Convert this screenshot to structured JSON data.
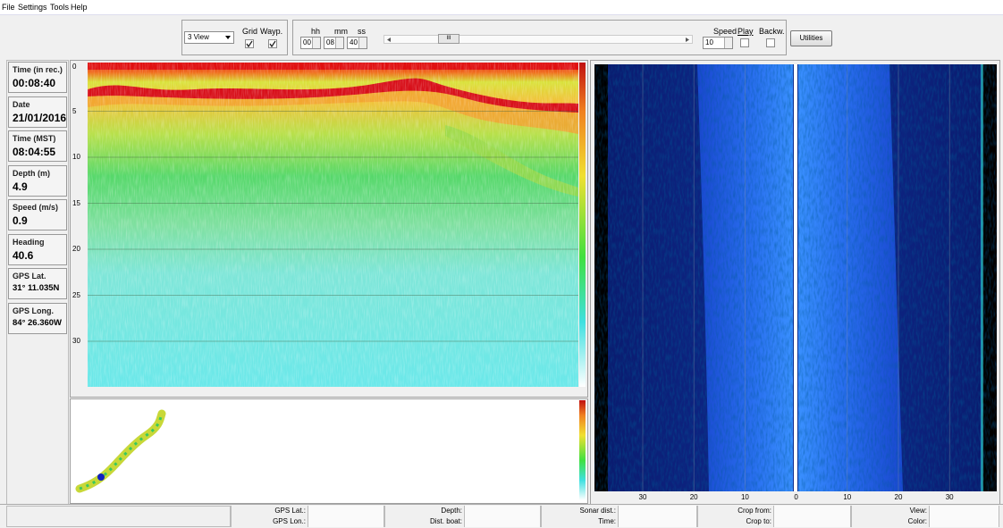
{
  "menu": [
    "File",
    "Settings",
    "Tools",
    "Help"
  ],
  "toolbar": {
    "view_select": "3 View",
    "grid_label": "Grid",
    "waypoints_label": "Wayp.",
    "time_labels": [
      "hh",
      "mm",
      "ss"
    ],
    "time_values": [
      "00",
      "08",
      "40"
    ],
    "slider_grip": "III",
    "speed_label": "Speed",
    "speed_value": "10",
    "play_label": "Play",
    "backward_label": "Backw.",
    "utilities_button": "Utilities"
  },
  "info_panel": [
    {
      "label": "Time (in rec.)",
      "value": "00:08:40"
    },
    {
      "label": "Date",
      "value": "21/01/2016"
    },
    {
      "label": "Time (MST)",
      "value": "08:04:55"
    },
    {
      "label": "Depth (m)",
      "value": "4.9"
    },
    {
      "label": "Speed (m/s)",
      "value": "0.9"
    },
    {
      "label": "Heading",
      "value": "40.6"
    },
    {
      "label": "GPS Lat.",
      "value": "31° 11.035N"
    },
    {
      "label": "GPS Long.",
      "value": "84° 26.360W"
    }
  ],
  "echogram": {
    "depth_ticks": [
      0,
      5,
      10,
      15,
      20,
      25,
      30
    ]
  },
  "sidescan": {
    "range_ticks": [
      30,
      20,
      10,
      0,
      10,
      20,
      30
    ]
  },
  "status_bar": {
    "rows": [
      [
        "GPS Lat.:",
        "Depth:",
        "Sonar dist.:",
        "Crop from:",
        "View:"
      ],
      [
        "GPS Lon.:",
        "Dist. boat:",
        "Time:",
        "Crop to:",
        "Color:"
      ]
    ]
  }
}
